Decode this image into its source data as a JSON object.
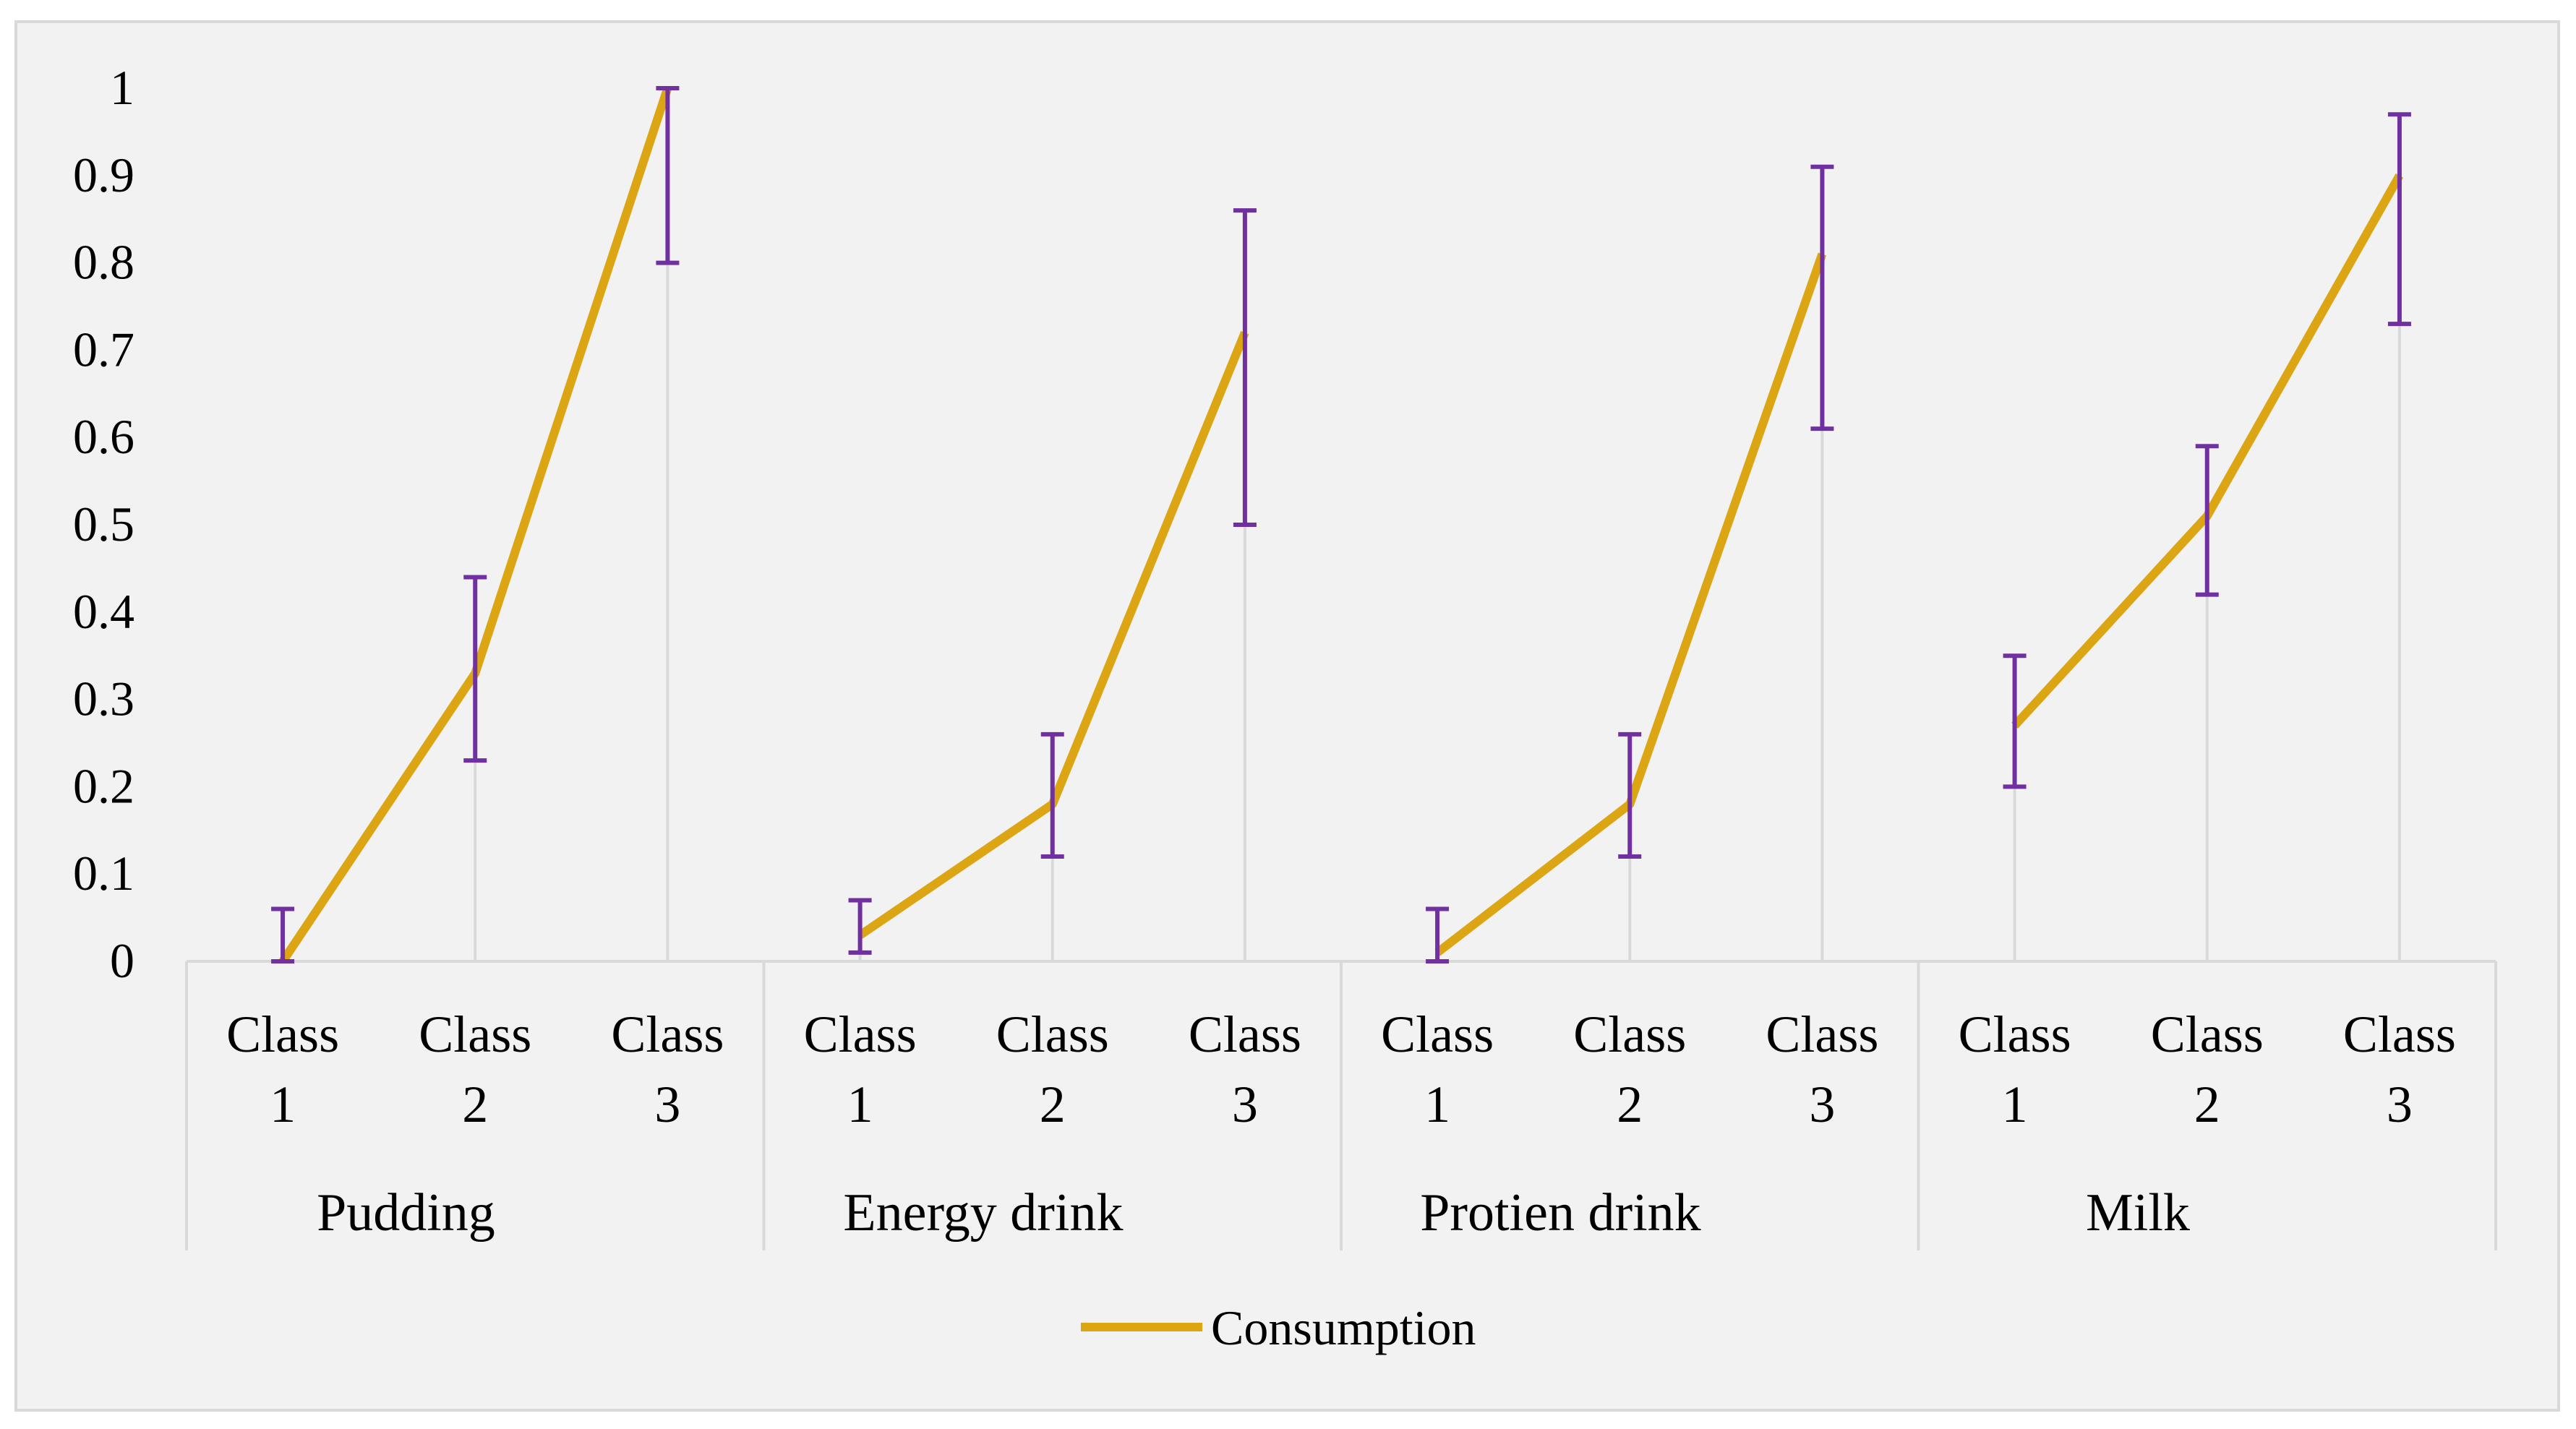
{
  "chart_data": {
    "type": "line",
    "title": "",
    "xlabel": "",
    "ylabel": "",
    "ylim": [
      0,
      1
    ],
    "yticks": [
      0,
      0.1,
      0.2,
      0.3,
      0.4,
      0.5,
      0.6,
      0.7,
      0.8,
      0.9,
      1
    ],
    "ytick_labels": [
      "0",
      "0.1",
      "0.2",
      "0.3",
      "0.4",
      "0.5",
      "0.6",
      "0.7",
      "0.8",
      "0.9",
      "1"
    ],
    "groups": [
      {
        "name": "Pudding",
        "categories": [
          [
            "Class",
            "1"
          ],
          [
            "Class",
            "2"
          ],
          [
            "Class",
            "3"
          ]
        ]
      },
      {
        "name": "Energy drink",
        "categories": [
          [
            "Class",
            "1"
          ],
          [
            "Class",
            "2"
          ],
          [
            "Class",
            "3"
          ]
        ]
      },
      {
        "name": "Protien drink",
        "categories": [
          [
            "Class",
            "1"
          ],
          [
            "Class",
            "2"
          ],
          [
            "Class",
            "3"
          ]
        ]
      },
      {
        "name": "Milk",
        "categories": [
          [
            "Class",
            "1"
          ],
          [
            "Class",
            "2"
          ],
          [
            "Class",
            "3"
          ]
        ]
      }
    ],
    "series": [
      {
        "name": "Consumption",
        "color": "#dba514",
        "values": [
          0.0,
          0.33,
          1.0,
          0.03,
          0.18,
          0.72,
          0.01,
          0.18,
          0.81,
          0.27,
          0.51,
          0.9
        ],
        "error_low": [
          0.0,
          0.23,
          0.8,
          0.01,
          0.12,
          0.5,
          0.0,
          0.12,
          0.61,
          0.2,
          0.42,
          0.73
        ],
        "error_high": [
          0.06,
          0.44,
          1.0,
          0.07,
          0.26,
          0.86,
          0.06,
          0.26,
          0.91,
          0.35,
          0.59,
          0.97
        ]
      }
    ],
    "error_bar_color": "#7030a0",
    "grid": "vertical drop lines",
    "legend": {
      "position": "bottom",
      "entries": [
        "Consumption"
      ]
    }
  }
}
